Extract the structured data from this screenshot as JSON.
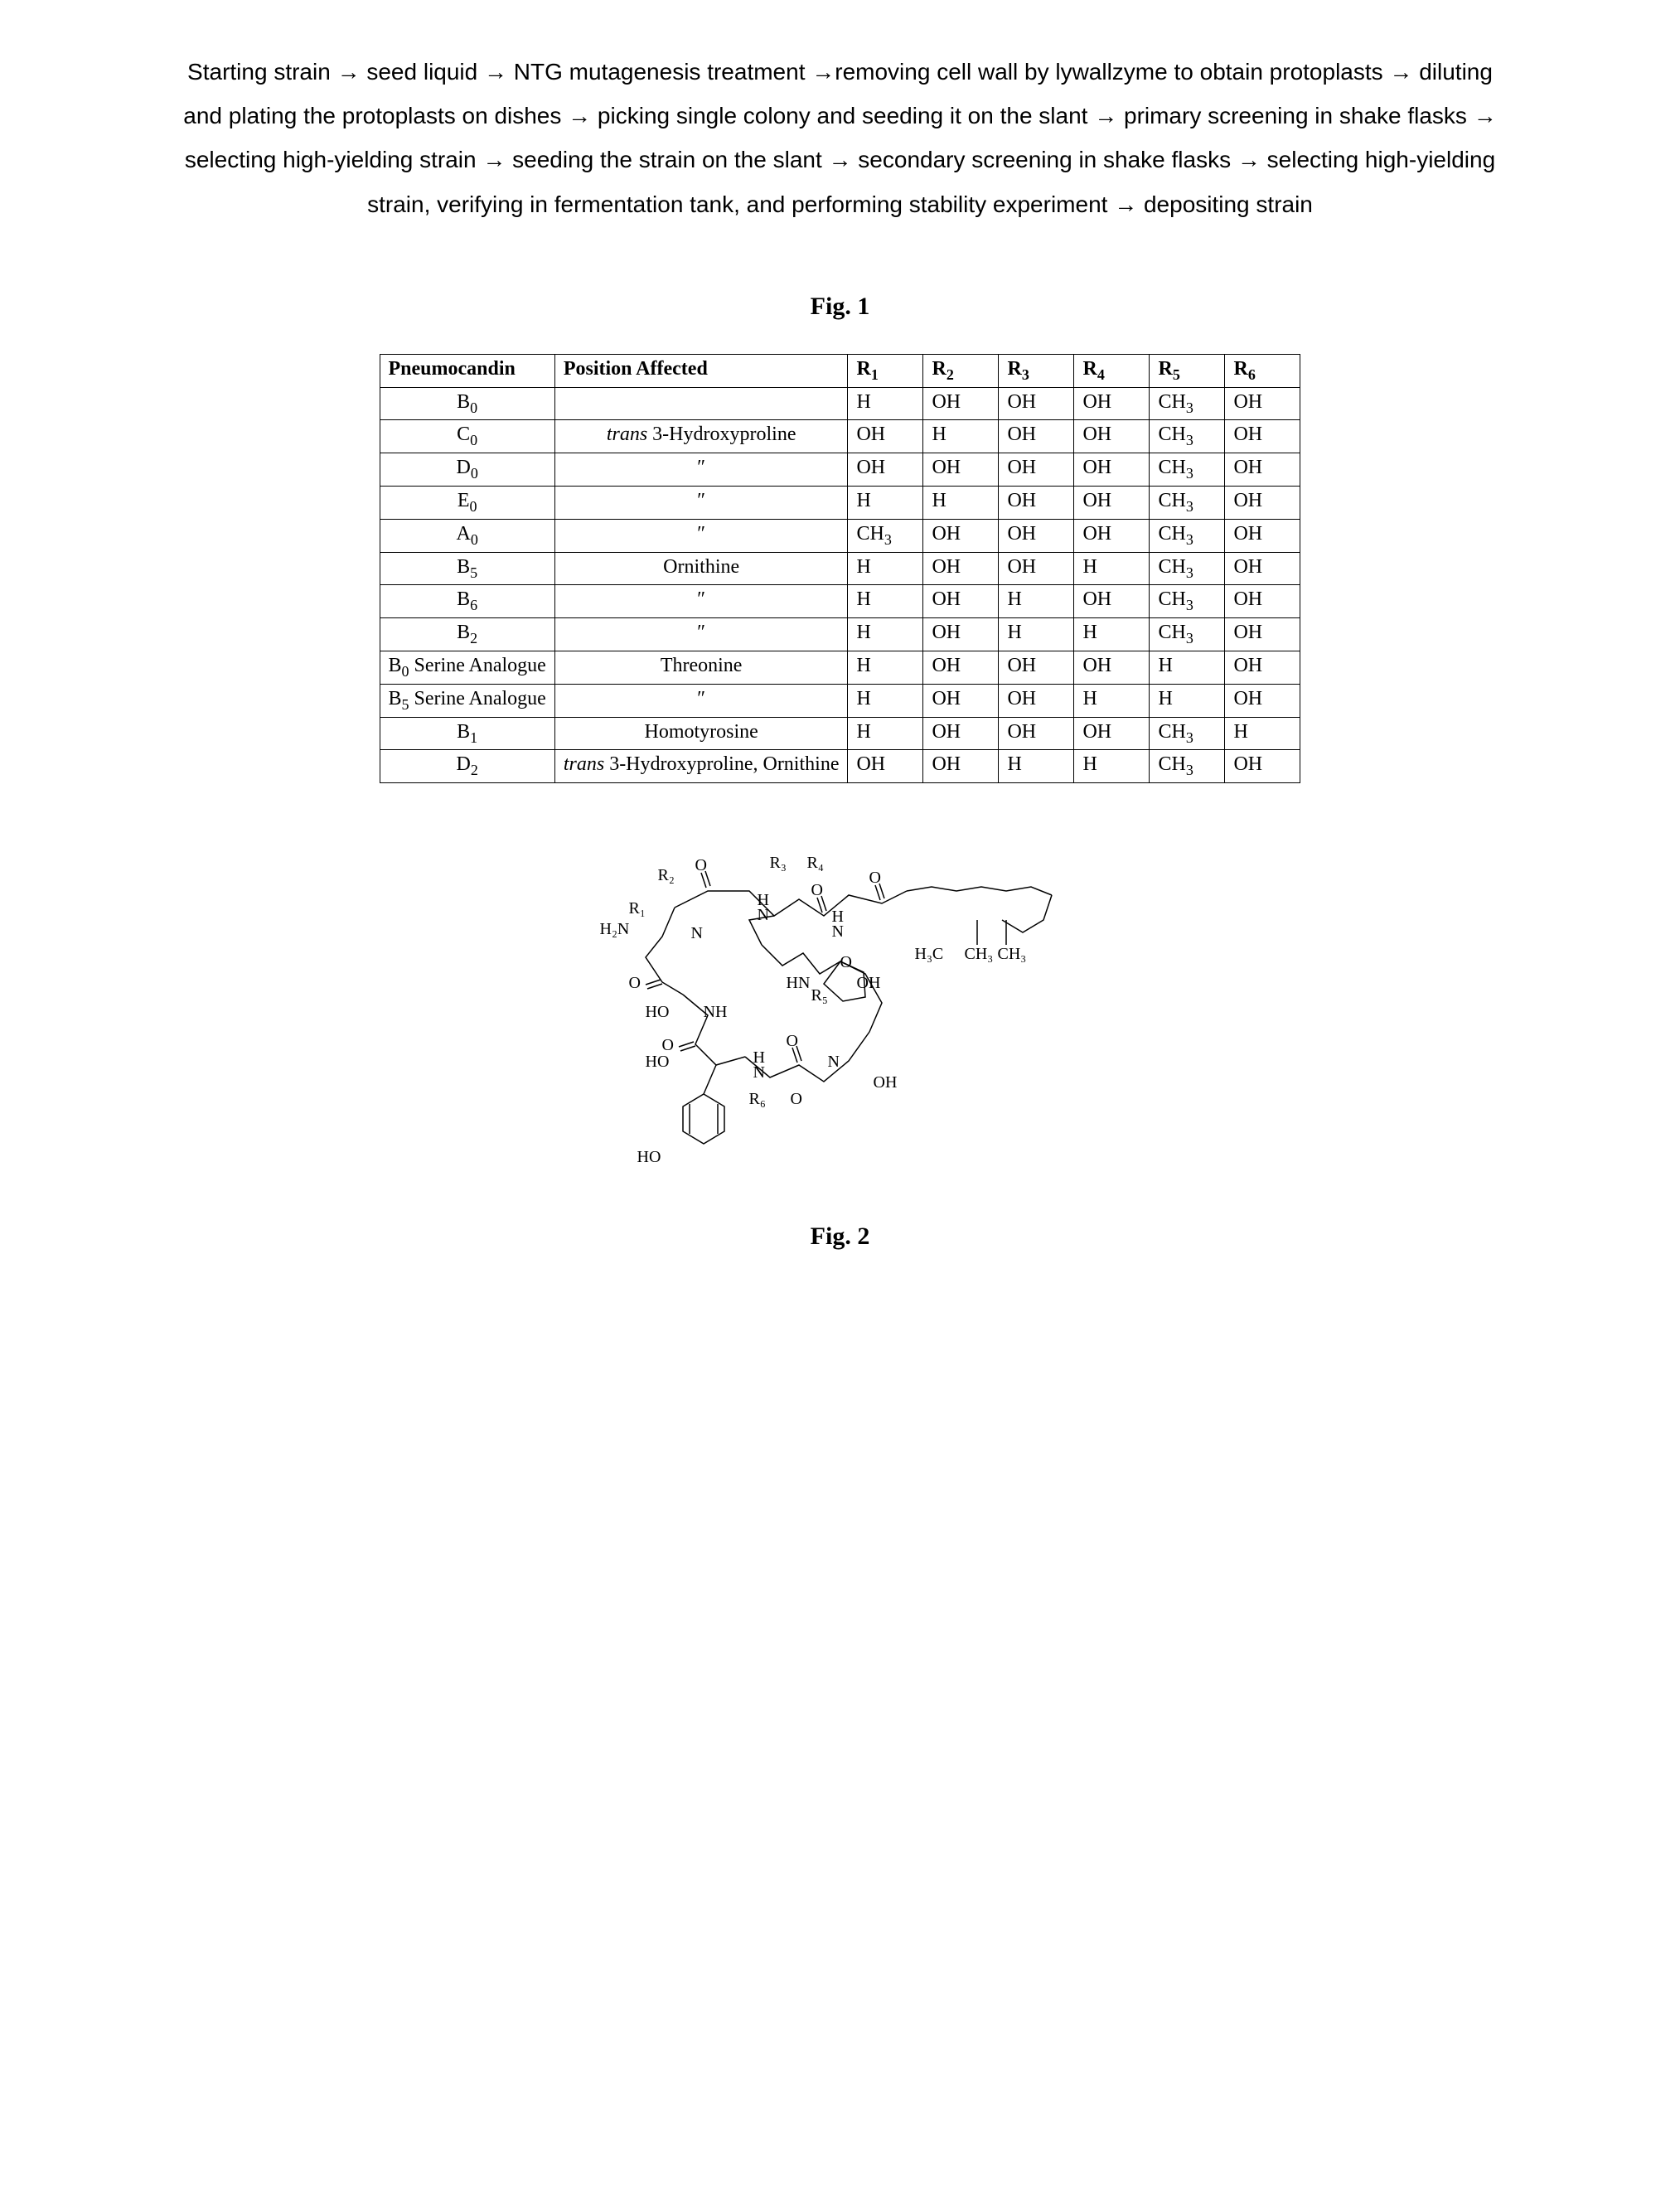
{
  "flow": {
    "text": "Starting strain → seed liquid → NTG mutagenesis treatment →removing cell wall by lywallzyme to obtain protoplasts → diluting and plating the protoplasts on dishes → picking single colony and seeding it on the slant → primary screening in shake flasks → selecting high-yielding strain → seeding the strain on the slant → secondary screening in shake flasks → selecting high-yielding strain, verifying in fermentation tank, and performing stability experiment → depositing strain"
  },
  "fig1_caption": "Fig. 1",
  "fig2_caption": "Fig. 2",
  "table": {
    "headers": {
      "c0": "Pneumocandin",
      "c1": "Position Affected",
      "c2_base": "R",
      "c3_base": "R",
      "c4_base": "R",
      "c5_base": "R",
      "c6_base": "R",
      "c7_base": "R"
    },
    "rows": [
      {
        "name_base": "B",
        "name_sub": "0",
        "pos": "",
        "r1": "H",
        "r2": "OH",
        "r3": "OH",
        "r4": "OH",
        "r5": "CH",
        "r5sub": "3",
        "r6": "OH"
      },
      {
        "name_base": "C",
        "name_sub": "0",
        "pos_italic": "trans",
        "pos_rest": " 3-Hydroxyproline",
        "r1": "OH",
        "r2": "H",
        "r3": "OH",
        "r4": "OH",
        "r5": "CH",
        "r5sub": "3",
        "r6": "OH"
      },
      {
        "name_base": "D",
        "name_sub": "0",
        "pos": "″",
        "r1": "OH",
        "r2": "OH",
        "r3": "OH",
        "r4": "OH",
        "r5": "CH",
        "r5sub": "3",
        "r6": "OH"
      },
      {
        "name_base": "E",
        "name_sub": "0",
        "pos": "″",
        "r1": "H",
        "r2": "H",
        "r3": "OH",
        "r4": "OH",
        "r5": "CH",
        "r5sub": "3",
        "r6": "OH"
      },
      {
        "name_base": "A",
        "name_sub": "0",
        "pos": "″",
        "r1_ch": "CH",
        "r1sub": "3",
        "r2": "OH",
        "r3": "OH",
        "r4": "OH",
        "r5": "CH",
        "r5sub": "3",
        "r6": "OH"
      },
      {
        "name_base": "B",
        "name_sub": "5",
        "pos": "Ornithine",
        "r1": "H",
        "r2": "OH",
        "r3": "OH",
        "r4": "H",
        "r5": "CH",
        "r5sub": "3",
        "r6": "OH"
      },
      {
        "name_base": "B",
        "name_sub": "6",
        "pos": "″",
        "r1": "H",
        "r2": "OH",
        "r3": "H",
        "r4": "OH",
        "r5": "CH",
        "r5sub": "3",
        "r6": "OH"
      },
      {
        "name_base": "B",
        "name_sub": "2",
        "pos": "″",
        "r1": "H",
        "r2": "OH",
        "r3": "H",
        "r4": "H",
        "r5": "CH",
        "r5sub": "3",
        "r6": "OH"
      },
      {
        "name_base": "B",
        "name_sub": "0",
        "name_extra": " Serine Analogue",
        "pos": "Threonine",
        "r1": "H",
        "r2": "OH",
        "r3": "OH",
        "r4": "OH",
        "r5": "H",
        "r6": "OH"
      },
      {
        "name_base": "B",
        "name_sub": "5",
        "name_extra": " Serine Analogue",
        "pos": "″",
        "r1": "H",
        "r2": "OH",
        "r3": "OH",
        "r4": "H",
        "r5": "H",
        "r6": "OH"
      },
      {
        "name_base": "B",
        "name_sub": "1",
        "pos": "Homotyrosine",
        "r1": "H",
        "r2": "OH",
        "r3": "OH",
        "r4": "OH",
        "r5": "CH",
        "r5sub": "3",
        "r6": "H"
      },
      {
        "name_base": "D",
        "name_sub": "2",
        "pos_italic": "trans",
        "pos_rest": " 3-Hydroxyproline, Ornithine",
        "r1": "OH",
        "r2": "OH",
        "r3": "H",
        "r4": "H",
        "r5": "CH",
        "r5sub": "3",
        "r6": "OH"
      }
    ]
  },
  "structure_labels": {
    "r1": "R₁",
    "r2": "R₂",
    "r3": "R₃",
    "r4": "R₄",
    "r5": "R₅",
    "r6": "R₆",
    "h2n": "H₂N",
    "ho": "HO",
    "oh": "OH",
    "o": "O",
    "h": "H",
    "n": "N",
    "nh": "NH",
    "hn": "HN",
    "h3c": "H₃C",
    "ch3": "CH₃"
  }
}
